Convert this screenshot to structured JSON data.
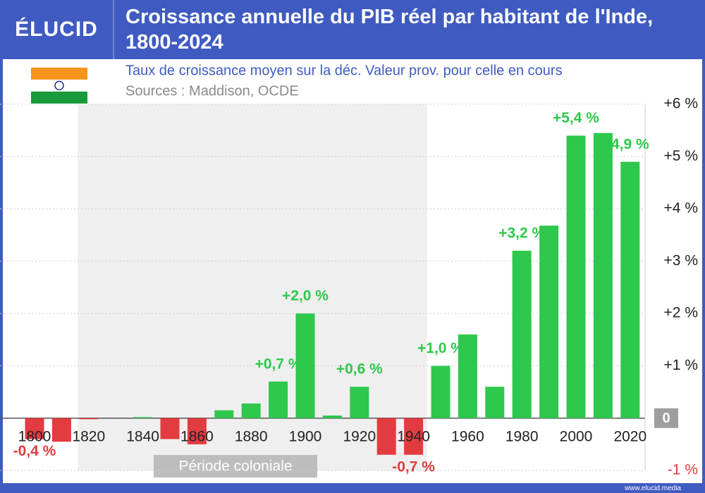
{
  "logo": "ÉLUCID",
  "footer": "www.elucid.media",
  "chart_data": {
    "type": "bar",
    "title": "Croissance annuelle du PIB réel par habitant de l'Inde, 1800-2024",
    "subtitle": "Taux de croissance moyen sur la déc. Valeur prov. pour celle en cours",
    "source": "Sources : Maddison, OCDE",
    "categories": [
      "1800",
      null,
      "1820",
      null,
      "1840",
      null,
      "1860",
      null,
      "1880",
      null,
      "1900",
      null,
      "1920",
      null,
      "1940",
      null,
      "1960",
      null,
      "1980",
      null,
      "2000",
      null,
      "2020"
    ],
    "values": [
      -0.4,
      -0.45,
      -0.02,
      0,
      0.02,
      -0.4,
      -0.5,
      0.15,
      0.28,
      0.7,
      2.0,
      0.05,
      0.6,
      -0.7,
      -0.7,
      1.0,
      1.6,
      0.6,
      3.2,
      3.68,
      5.4,
      5.45,
      4.9
    ],
    "value_labels": [
      "-0,4 %",
      null,
      null,
      null,
      null,
      null,
      null,
      null,
      null,
      "+0,7 %",
      "+2,0 %",
      null,
      "+0,6 %",
      null,
      "-0,7 %",
      "+1,0 %",
      null,
      null,
      "+3,2 %",
      null,
      "+5,4 %",
      null,
      "4,9 %"
    ],
    "positive_color": "#2ec84c",
    "negative_color": "#e23b40",
    "ylim": [
      -1,
      6
    ],
    "yticks": [
      {
        "value": -1,
        "label": "-1 %"
      },
      0,
      {
        "value": 1,
        "label": "+1 %"
      },
      {
        "value": 2,
        "label": "+2 %"
      },
      {
        "value": 3,
        "label": "+3 %"
      },
      {
        "value": 4,
        "label": "+4 %"
      },
      {
        "value": 5,
        "label": "+5 %"
      },
      {
        "value": 6,
        "label": "+6 %"
      }
    ],
    "grid": true,
    "shaded_region": {
      "label": "Période coloniale",
      "from_index": 1.6,
      "to_index": 14.5
    }
  }
}
